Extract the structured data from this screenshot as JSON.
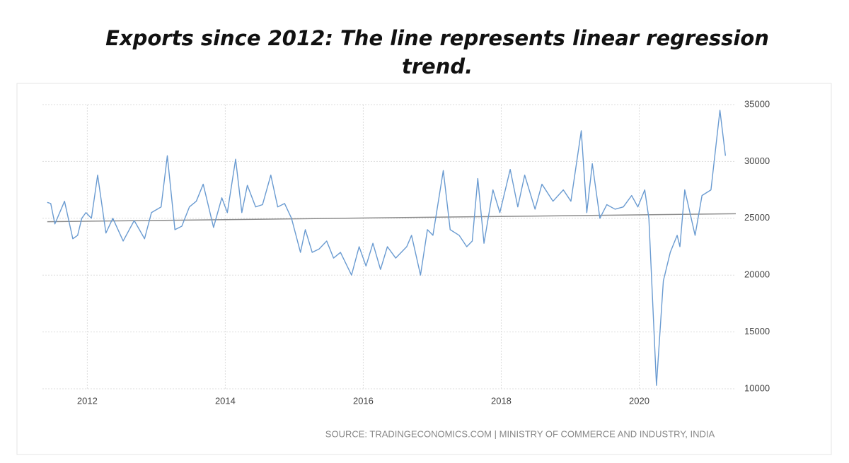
{
  "chart_data": {
    "type": "line",
    "title": "Exports since 2012: The line represents linear regression trend.",
    "source": "SOURCE: TRADINGECONOMICS.COM | MINISTRY OF COMMERCE AND INDUSTRY, INDIA",
    "x": [
      2011.42,
      2011.47,
      2011.53,
      2011.67,
      2011.79,
      2011.86,
      2011.92,
      2011.98,
      2012.06,
      2012.15,
      2012.27,
      2012.37,
      2012.52,
      2012.68,
      2012.83,
      2012.93,
      2013.07,
      2013.16,
      2013.27,
      2013.37,
      2013.48,
      2013.58,
      2013.68,
      2013.83,
      2013.95,
      2014.03,
      2014.15,
      2014.24,
      2014.32,
      2014.44,
      2014.54,
      2014.66,
      2014.76,
      2014.86,
      2014.96,
      2015.09,
      2015.16,
      2015.26,
      2015.36,
      2015.47,
      2015.57,
      2015.67,
      2015.83,
      2015.94,
      2016.04,
      2016.14,
      2016.25,
      2016.35,
      2016.47,
      2016.63,
      2016.7,
      2016.83,
      2016.93,
      2017.01,
      2017.16,
      2017.26,
      2017.39,
      2017.5,
      2017.58,
      2017.66,
      2017.75,
      2017.88,
      2017.98,
      2018.13,
      2018.24,
      2018.34,
      2018.49,
      2018.59,
      2018.75,
      2018.9,
      2019.01,
      2019.16,
      2019.24,
      2019.32,
      2019.43,
      2019.53,
      2019.65,
      2019.77,
      2019.89,
      2019.98,
      2020.08,
      2020.14,
      2020.25,
      2020.35,
      2020.45,
      2020.55,
      2020.59,
      2020.66,
      2020.81,
      2020.91,
      2021.04,
      2021.17,
      2021.25
    ],
    "values": [
      26400,
      26300,
      24500,
      26500,
      23200,
      23500,
      25000,
      25500,
      25000,
      28800,
      23700,
      25000,
      23000,
      24800,
      23200,
      25500,
      26000,
      30500,
      24000,
      24300,
      26000,
      26500,
      28000,
      24200,
      26800,
      25500,
      30200,
      25500,
      27900,
      26000,
      26200,
      28800,
      26000,
      26300,
      25000,
      22000,
      24000,
      22000,
      22300,
      23000,
      21500,
      22000,
      20000,
      22500,
      20800,
      22800,
      20500,
      22500,
      21500,
      22500,
      23500,
      20000,
      24000,
      23500,
      29200,
      24000,
      23500,
      22500,
      23000,
      28500,
      22800,
      27500,
      25500,
      29300,
      26000,
      28800,
      25800,
      28000,
      26500,
      27500,
      26500,
      32700,
      25500,
      29800,
      25000,
      26200,
      25800,
      26000,
      27000,
      26000,
      27500,
      25000,
      10300,
      19500,
      22000,
      23500,
      22500,
      27500,
      23500,
      27000,
      27500,
      34500,
      30500
    ],
    "color": "#6a9bd1",
    "trend": {
      "x": [
        2011.42,
        2021.4
      ],
      "values": [
        24700,
        25400
      ],
      "color": "#8c8c8c"
    },
    "xlim": [
      2011.35,
      2021.4
    ],
    "xticks": [
      2012,
      2014,
      2016,
      2018,
      2020
    ],
    "ylim": [
      10000,
      35000
    ],
    "yticks": [
      10000,
      15000,
      20000,
      25000,
      30000,
      35000
    ],
    "grid": true
  }
}
